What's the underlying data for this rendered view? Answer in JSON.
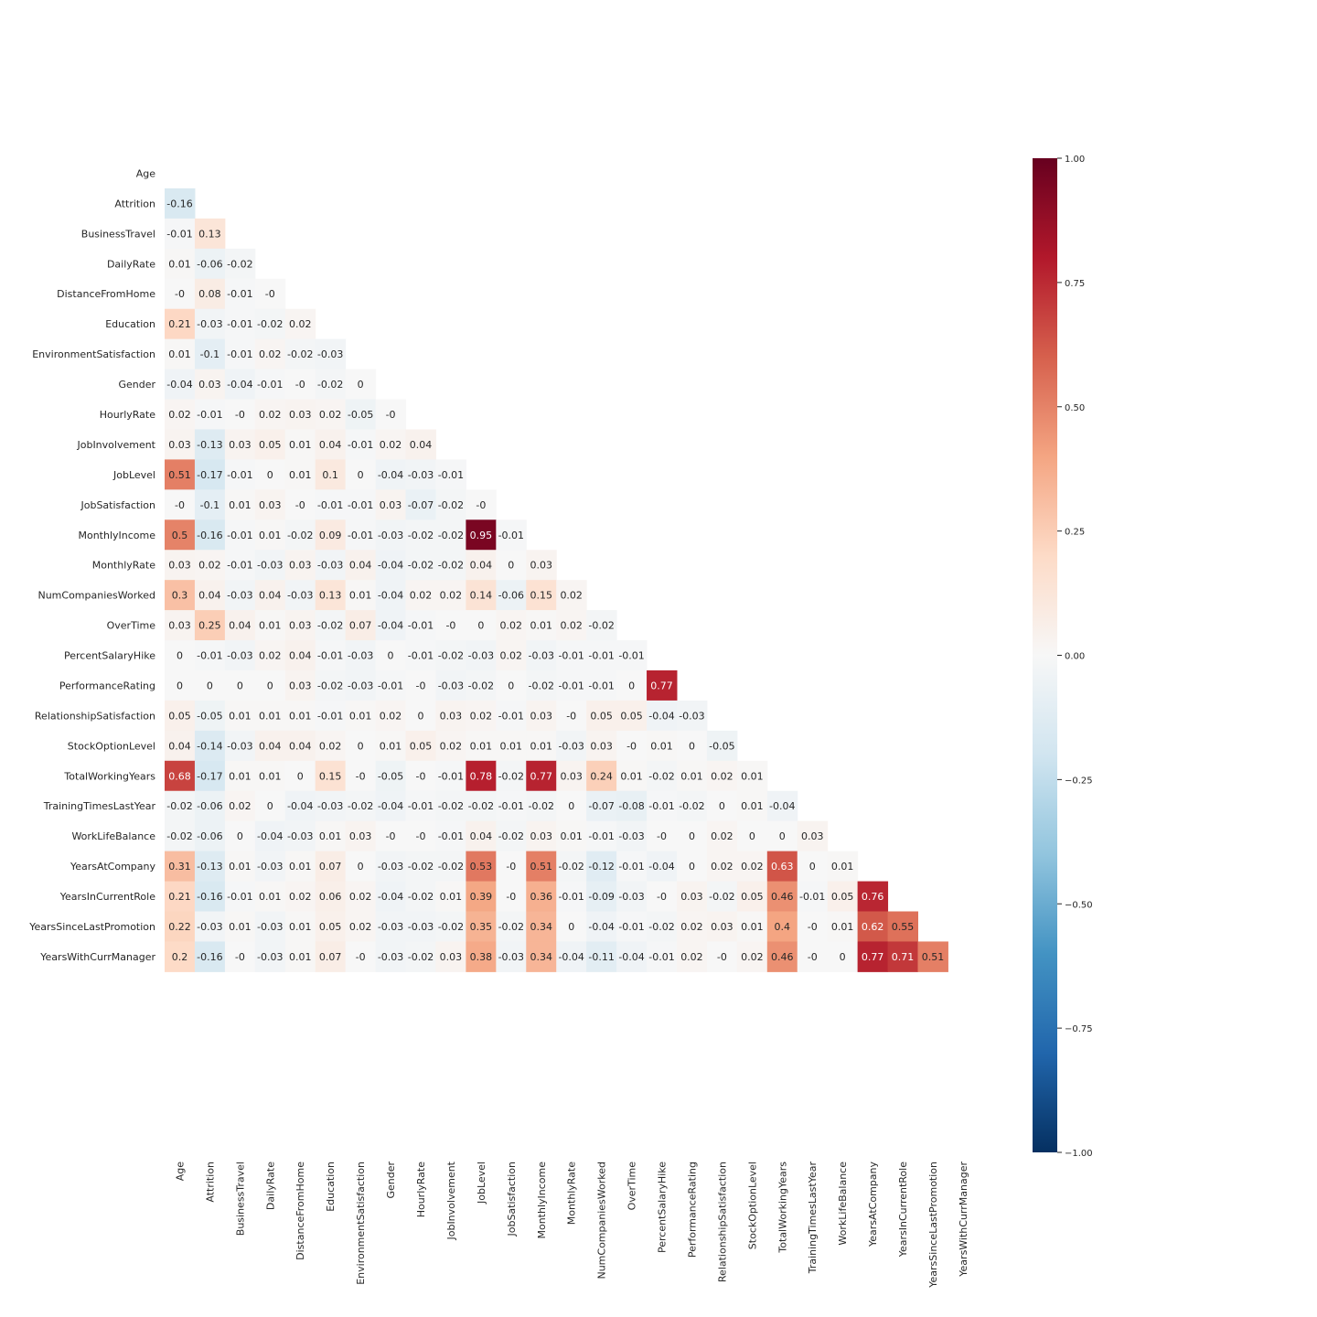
{
  "chart_data": {
    "type": "heatmap",
    "title": "",
    "xlabel": "",
    "ylabel": "",
    "mask": "upper-triangle-including-diagonal",
    "colormap": "RdBu_r",
    "vmin": -1.0,
    "vmax": 1.0,
    "labels": [
      "Age",
      "Attrition",
      "BusinessTravel",
      "DailyRate",
      "DistanceFromHome",
      "Education",
      "EnvironmentSatisfaction",
      "Gender",
      "HourlyRate",
      "JobInvolvement",
      "JobLevel",
      "JobSatisfaction",
      "MonthlyIncome",
      "MonthlyRate",
      "NumCompaniesWorked",
      "OverTime",
      "PercentSalaryHike",
      "PerformanceRating",
      "RelationshipSatisfaction",
      "StockOptionLevel",
      "TotalWorkingYears",
      "TrainingTimesLastYear",
      "WorkLifeBalance",
      "YearsAtCompany",
      "YearsInCurrentRole",
      "YearsSinceLastPromotion",
      "YearsWithCurrManager"
    ],
    "lower_triangle": [
      [],
      [
        "-0.16"
      ],
      [
        "-0.01",
        "0.13"
      ],
      [
        "0.01",
        "-0.06",
        "-0.02"
      ],
      [
        "-0",
        "0.08",
        "-0.01",
        "-0"
      ],
      [
        "0.21",
        "-0.03",
        "-0.01",
        "-0.02",
        "0.02"
      ],
      [
        "0.01",
        "-0.1",
        "-0.01",
        "0.02",
        "-0.02",
        "-0.03"
      ],
      [
        "-0.04",
        "0.03",
        "-0.04",
        "-0.01",
        "-0",
        "-0.02",
        "0"
      ],
      [
        "0.02",
        "-0.01",
        "-0",
        "0.02",
        "0.03",
        "0.02",
        "-0.05",
        "-0"
      ],
      [
        "0.03",
        "-0.13",
        "0.03",
        "0.05",
        "0.01",
        "0.04",
        "-0.01",
        "0.02",
        "0.04"
      ],
      [
        "0.51",
        "-0.17",
        "-0.01",
        "0",
        "0.01",
        "0.1",
        "0",
        "-0.04",
        "-0.03",
        "-0.01"
      ],
      [
        "-0",
        "-0.1",
        "0.01",
        "0.03",
        "-0",
        "-0.01",
        "-0.01",
        "0.03",
        "-0.07",
        "-0.02",
        "-0"
      ],
      [
        "0.5",
        "-0.16",
        "-0.01",
        "0.01",
        "-0.02",
        "0.09",
        "-0.01",
        "-0.03",
        "-0.02",
        "-0.02",
        "0.95",
        "-0.01"
      ],
      [
        "0.03",
        "0.02",
        "-0.01",
        "-0.03",
        "0.03",
        "-0.03",
        "0.04",
        "-0.04",
        "-0.02",
        "-0.02",
        "0.04",
        "0",
        "0.03"
      ],
      [
        "0.3",
        "0.04",
        "-0.03",
        "0.04",
        "-0.03",
        "0.13",
        "0.01",
        "-0.04",
        "0.02",
        "0.02",
        "0.14",
        "-0.06",
        "0.15",
        "0.02"
      ],
      [
        "0.03",
        "0.25",
        "0.04",
        "0.01",
        "0.03",
        "-0.02",
        "0.07",
        "-0.04",
        "-0.01",
        "-0",
        "0",
        "0.02",
        "0.01",
        "0.02",
        "-0.02"
      ],
      [
        "0",
        "-0.01",
        "-0.03",
        "0.02",
        "0.04",
        "-0.01",
        "-0.03",
        "0",
        "-0.01",
        "-0.02",
        "-0.03",
        "0.02",
        "-0.03",
        "-0.01",
        "-0.01",
        "-0.01"
      ],
      [
        "0",
        "0",
        "0",
        "0",
        "0.03",
        "-0.02",
        "-0.03",
        "-0.01",
        "-0",
        "-0.03",
        "-0.02",
        "0",
        "-0.02",
        "-0.01",
        "-0.01",
        "0",
        "0.77"
      ],
      [
        "0.05",
        "-0.05",
        "0.01",
        "0.01",
        "0.01",
        "-0.01",
        "0.01",
        "0.02",
        "0",
        "0.03",
        "0.02",
        "-0.01",
        "0.03",
        "-0",
        "0.05",
        "0.05",
        "-0.04",
        "-0.03"
      ],
      [
        "0.04",
        "-0.14",
        "-0.03",
        "0.04",
        "0.04",
        "0.02",
        "0",
        "0.01",
        "0.05",
        "0.02",
        "0.01",
        "0.01",
        "0.01",
        "-0.03",
        "0.03",
        "-0",
        "0.01",
        "0",
        "-0.05"
      ],
      [
        "0.68",
        "-0.17",
        "0.01",
        "0.01",
        "0",
        "0.15",
        "-0",
        "-0.05",
        "-0",
        "-0.01",
        "0.78",
        "-0.02",
        "0.77",
        "0.03",
        "0.24",
        "0.01",
        "-0.02",
        "0.01",
        "0.02",
        "0.01"
      ],
      [
        "-0.02",
        "-0.06",
        "0.02",
        "0",
        "-0.04",
        "-0.03",
        "-0.02",
        "-0.04",
        "-0.01",
        "-0.02",
        "-0.02",
        "-0.01",
        "-0.02",
        "0",
        "-0.07",
        "-0.08",
        "-0.01",
        "-0.02",
        "0",
        "0.01",
        "-0.04"
      ],
      [
        "-0.02",
        "-0.06",
        "0",
        "-0.04",
        "-0.03",
        "0.01",
        "0.03",
        "-0",
        "-0",
        "-0.01",
        "0.04",
        "-0.02",
        "0.03",
        "0.01",
        "-0.01",
        "-0.03",
        "-0",
        "0",
        "0.02",
        "0",
        "0",
        "0.03"
      ],
      [
        "0.31",
        "-0.13",
        "0.01",
        "-0.03",
        "0.01",
        "0.07",
        "0",
        "-0.03",
        "-0.02",
        "-0.02",
        "0.53",
        "-0",
        "0.51",
        "-0.02",
        "-0.12",
        "-0.01",
        "-0.04",
        "0",
        "0.02",
        "0.02",
        "0.63",
        "0",
        "0.01"
      ],
      [
        "0.21",
        "-0.16",
        "-0.01",
        "0.01",
        "0.02",
        "0.06",
        "0.02",
        "-0.04",
        "-0.02",
        "0.01",
        "0.39",
        "-0",
        "0.36",
        "-0.01",
        "-0.09",
        "-0.03",
        "-0",
        "0.03",
        "-0.02",
        "0.05",
        "0.46",
        "-0.01",
        "0.05",
        "0.76"
      ],
      [
        "0.22",
        "-0.03",
        "0.01",
        "-0.03",
        "0.01",
        "0.05",
        "0.02",
        "-0.03",
        "-0.03",
        "-0.02",
        "0.35",
        "-0.02",
        "0.34",
        "0",
        "-0.04",
        "-0.01",
        "-0.02",
        "0.02",
        "0.03",
        "0.01",
        "0.4",
        "-0",
        "0.01",
        "0.62",
        "0.55"
      ],
      [
        "0.2",
        "-0.16",
        "-0",
        "-0.03",
        "0.01",
        "0.07",
        "-0",
        "-0.03",
        "-0.02",
        "0.03",
        "0.38",
        "-0.03",
        "0.34",
        "-0.04",
        "-0.11",
        "-0.04",
        "-0.01",
        "0.02",
        "-0",
        "0.02",
        "0.46",
        "-0",
        "0",
        "0.77",
        "0.71",
        "0.51"
      ]
    ],
    "colorbar": {
      "ticks": [
        1.0,
        0.75,
        0.5,
        0.25,
        0.0,
        -0.25,
        -0.5,
        -0.75,
        -1.0
      ],
      "tick_labels": [
        "1.00",
        "0.75",
        "0.50",
        "0.25",
        "0.00",
        "−0.25",
        "−0.50",
        "−0.75",
        "−1.00"
      ]
    }
  }
}
